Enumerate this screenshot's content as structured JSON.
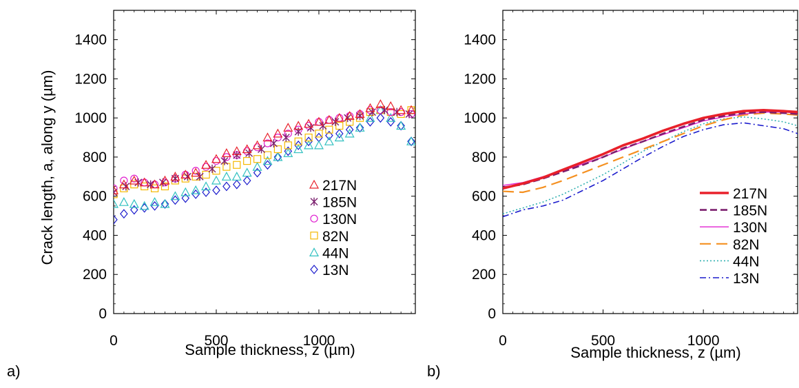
{
  "figure": {
    "panel_a_label": "a)",
    "panel_b_label": "b)"
  },
  "chart_data": [
    {
      "type": "scatter",
      "panel": "a)",
      "xlabel": "Sample thickness, z (µm)",
      "ylabel": "Crack length, a, along y (µm)",
      "xlim": [
        0,
        1470
      ],
      "ylim": [
        0,
        1550
      ],
      "xticks": [
        0,
        500,
        1000
      ],
      "yticks": [
        0,
        200,
        400,
        600,
        800,
        1000,
        1200,
        1400
      ],
      "legend_position": "lower-right",
      "series": [
        {
          "name": "217N",
          "color": "#e8202a",
          "marker": "triangle",
          "x": [
            0,
            50,
            100,
            150,
            200,
            250,
            300,
            350,
            400,
            450,
            500,
            550,
            600,
            650,
            700,
            750,
            800,
            850,
            900,
            950,
            1000,
            1050,
            1100,
            1150,
            1200,
            1250,
            1300,
            1350,
            1400,
            1450
          ],
          "y": [
            630,
            660,
            680,
            670,
            660,
            680,
            700,
            710,
            720,
            760,
            790,
            820,
            830,
            840,
            860,
            900,
            920,
            950,
            960,
            970,
            980,
            990,
            1000,
            1010,
            1020,
            1050,
            1070,
            1060,
            1040,
            1040
          ]
        },
        {
          "name": "185N",
          "color": "#7b1f6e",
          "marker": "star",
          "x": [
            0,
            60,
            120,
            180,
            240,
            300,
            360,
            420,
            480,
            540,
            600,
            660,
            720,
            780,
            840,
            900,
            960,
            1020,
            1080,
            1140,
            1200,
            1260,
            1320,
            1380,
            1440
          ],
          "y": [
            620,
            650,
            670,
            660,
            670,
            690,
            700,
            700,
            740,
            780,
            810,
            820,
            840,
            870,
            900,
            930,
            950,
            960,
            980,
            1000,
            1010,
            1030,
            1040,
            1030,
            1020
          ]
        },
        {
          "name": "130N",
          "color": "#e020d0",
          "marker": "circle",
          "x": [
            0,
            50,
            100,
            150,
            200,
            250,
            300,
            350,
            400,
            450,
            500,
            550,
            600,
            650,
            700,
            750,
            800,
            850,
            900,
            950,
            1000,
            1050,
            1100,
            1150,
            1200,
            1250,
            1300,
            1350,
            1400,
            1450
          ],
          "y": [
            640,
            680,
            690,
            670,
            660,
            670,
            690,
            710,
            730,
            750,
            780,
            800,
            810,
            830,
            850,
            870,
            900,
            920,
            940,
            960,
            980,
            990,
            1000,
            1010,
            1020,
            1040,
            1040,
            1030,
            1030,
            1020
          ]
        },
        {
          "name": "82N",
          "color": "#f5b800",
          "marker": "square",
          "x": [
            0,
            50,
            100,
            150,
            200,
            250,
            300,
            350,
            400,
            450,
            500,
            550,
            600,
            650,
            700,
            750,
            800,
            850,
            900,
            950,
            1000,
            1050,
            1100,
            1150,
            1200,
            1250,
            1300,
            1350,
            1400,
            1450
          ],
          "y": [
            610,
            640,
            660,
            650,
            640,
            650,
            680,
            690,
            700,
            710,
            730,
            750,
            760,
            780,
            790,
            810,
            840,
            860,
            880,
            900,
            920,
            940,
            960,
            980,
            1000,
            1030,
            1040,
            1030,
            1020,
            1040
          ]
        },
        {
          "name": "44N",
          "color": "#30c0c0",
          "marker": "triangle",
          "x": [
            0,
            50,
            100,
            150,
            200,
            250,
            300,
            350,
            400,
            450,
            500,
            550,
            600,
            650,
            700,
            750,
            800,
            850,
            900,
            950,
            1000,
            1050,
            1100,
            1150,
            1200,
            1250,
            1300,
            1350,
            1400,
            1450
          ],
          "y": [
            560,
            570,
            560,
            550,
            570,
            560,
            600,
            620,
            630,
            650,
            680,
            700,
            700,
            720,
            750,
            780,
            800,
            820,
            840,
            860,
            860,
            880,
            900,
            920,
            950,
            1000,
            1040,
            1000,
            960,
            880
          ]
        },
        {
          "name": "13N",
          "color": "#1a1acc",
          "marker": "diamond",
          "x": [
            0,
            50,
            100,
            150,
            200,
            250,
            300,
            350,
            400,
            450,
            500,
            550,
            600,
            650,
            700,
            750,
            800,
            850,
            900,
            950,
            1000,
            1050,
            1100,
            1150,
            1200,
            1250,
            1300,
            1350,
            1400,
            1450
          ],
          "y": [
            480,
            510,
            530,
            540,
            550,
            560,
            580,
            590,
            610,
            620,
            630,
            650,
            660,
            680,
            720,
            760,
            800,
            830,
            860,
            880,
            900,
            910,
            920,
            940,
            950,
            980,
            1000,
            980,
            960,
            880
          ]
        }
      ]
    },
    {
      "type": "line",
      "panel": "b)",
      "xlabel": "Sample thickness, z (µm)",
      "ylabel": "",
      "xlim": [
        0,
        1470
      ],
      "ylim": [
        0,
        1550
      ],
      "xticks": [
        0,
        500,
        1000
      ],
      "yticks": [
        0,
        200,
        400,
        600,
        800,
        1000,
        1200,
        1400
      ],
      "legend_position": "lower-right",
      "x": [
        0,
        100,
        200,
        300,
        400,
        500,
        600,
        700,
        800,
        900,
        1000,
        1100,
        1200,
        1300,
        1400,
        1470
      ],
      "series": [
        {
          "name": "217N",
          "color": "#e8202a",
          "dash": "solid-thick",
          "y": [
            640,
            665,
            695,
            735,
            775,
            815,
            860,
            895,
            935,
            970,
            1000,
            1020,
            1035,
            1040,
            1035,
            1030
          ]
        },
        {
          "name": "185N",
          "color": "#7b1f6e",
          "dash": "dash",
          "y": [
            645,
            660,
            690,
            725,
            760,
            800,
            845,
            880,
            920,
            955,
            990,
            1010,
            1025,
            1030,
            1025,
            1020
          ]
        },
        {
          "name": "130N",
          "color": "#e020d0",
          "dash": "solid-thin",
          "y": [
            655,
            670,
            700,
            730,
            765,
            800,
            840,
            880,
            915,
            950,
            985,
            1005,
            1020,
            1030,
            1030,
            1025
          ]
        },
        {
          "name": "82N",
          "color": "#f59020",
          "dash": "long-dash",
          "y": [
            625,
            620,
            645,
            680,
            720,
            760,
            800,
            840,
            880,
            920,
            960,
            990,
            1015,
            1025,
            1020,
            1015
          ]
        },
        {
          "name": "44N",
          "color": "#30b0b0",
          "dash": "dot",
          "y": [
            510,
            540,
            570,
            610,
            660,
            710,
            770,
            830,
            880,
            930,
            970,
            995,
            1005,
            995,
            980,
            960
          ]
        },
        {
          "name": "13N",
          "color": "#1a1acc",
          "dash": "dash-dot",
          "y": [
            495,
            530,
            550,
            580,
            630,
            680,
            740,
            800,
            855,
            905,
            940,
            965,
            975,
            960,
            945,
            920
          ]
        }
      ]
    }
  ]
}
